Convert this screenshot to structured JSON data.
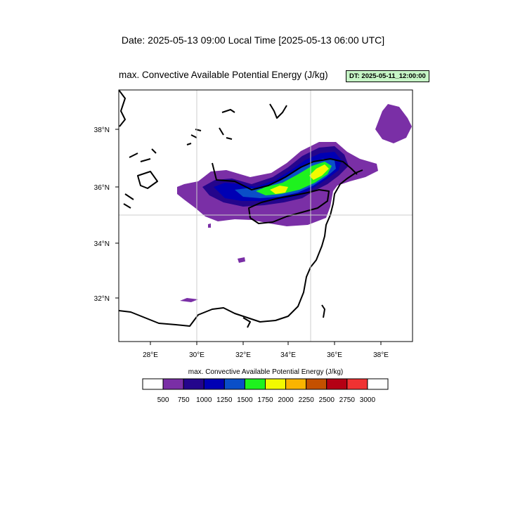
{
  "header": {
    "date_line": "Date: 2025-05-13  09:00 Local Time [2025-05-13  06:00 UTC]",
    "title": "max. Convective Available Potential Energy   (J/kg)",
    "dt_badge": "DT: 2025-05-11_12:00:00",
    "dt_badge_color": "#c6f5c6"
  },
  "map": {
    "lon_range": [
      26.6,
      39.4
    ],
    "lat_range": [
      30.4,
      39.5
    ],
    "x_ticks": [
      "28°E",
      "30°E",
      "32°E",
      "34°E",
      "36°E",
      "38°E"
    ],
    "y_ticks": [
      "38°N",
      "36°N",
      "34°N",
      "32°N"
    ],
    "gridlines": [
      "30°E",
      "35°E",
      "35°N"
    ]
  },
  "colorbar": {
    "title": "max. Convective Available Potential Energy  (J/kg)",
    "labels": [
      "500",
      "750",
      "1000",
      "1250",
      "1500",
      "1750",
      "2000",
      "2250",
      "2500",
      "2750",
      "3000"
    ],
    "colors": [
      "#ffffff",
      "#7a2fa6",
      "#24058c",
      "#0000b4",
      "#0a4fc8",
      "#1ef21e",
      "#f2fa00",
      "#fab400",
      "#c45000",
      "#b40014",
      "#f03232",
      "#ffffff"
    ]
  }
}
